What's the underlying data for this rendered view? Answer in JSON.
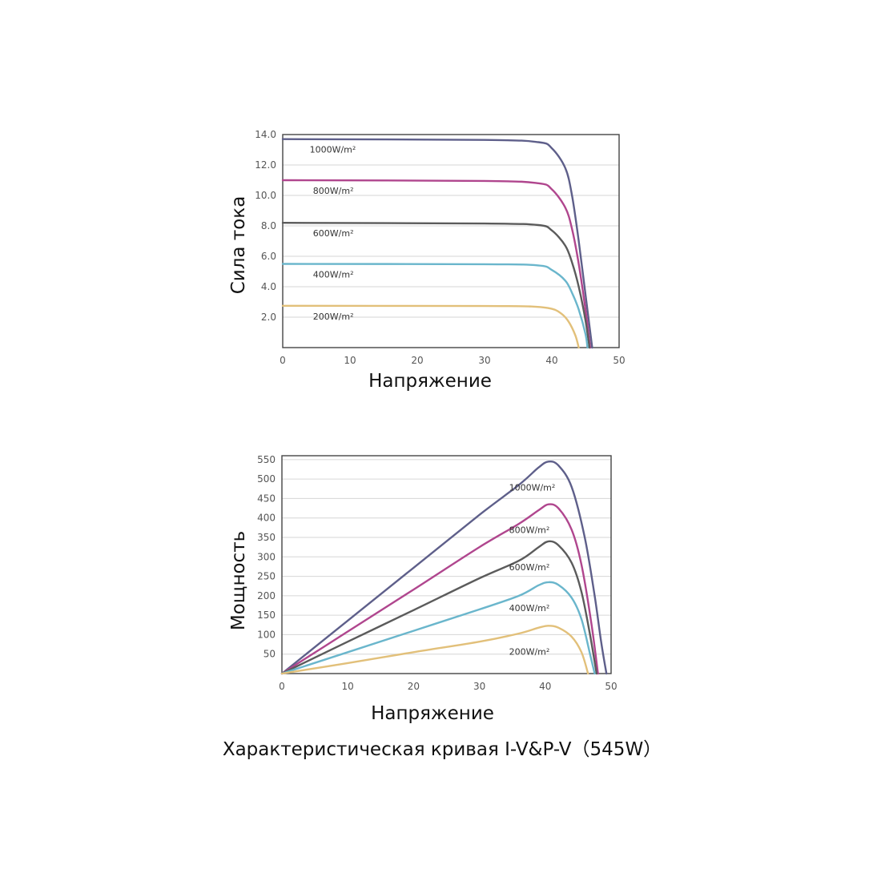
{
  "caption": "Характеристическая кривая I-V&P-V（545W）",
  "chart_data": [
    {
      "type": "line",
      "xlabel": "Напряжение",
      "ylabel": "Сила тока",
      "xlim": [
        0,
        50
      ],
      "ylim": [
        0,
        14
      ],
      "x_ticks": [
        "0",
        "10",
        "20",
        "30",
        "40",
        "50"
      ],
      "x_tick_values": [
        0,
        10,
        20,
        30,
        40,
        50
      ],
      "y_ticks": [
        "2.0",
        "4.0",
        "6.0",
        "8.0",
        "10.0",
        "12.0",
        "14.0"
      ],
      "y_tick_values": [
        2,
        4,
        6,
        8,
        10,
        12,
        14
      ],
      "grid": true,
      "series": [
        {
          "name": "1000W/m²",
          "color": "#5e5f8a",
          "x": [
            0,
            30,
            38,
            40,
            42,
            43,
            44,
            45,
            46
          ],
          "y": [
            13.7,
            13.65,
            13.5,
            13.1,
            11.8,
            10.0,
            7.0,
            3.5,
            0
          ]
        },
        {
          "name": "800W/m²",
          "color": "#b0468e",
          "x": [
            0,
            30,
            38,
            40,
            42,
            43,
            44,
            45,
            45.7
          ],
          "y": [
            11.0,
            10.95,
            10.8,
            10.4,
            9.2,
            7.8,
            5.5,
            2.5,
            0
          ]
        },
        {
          "name": "600W/m²",
          "color": "#5b5b5b",
          "x": [
            0,
            30,
            38,
            40,
            42,
            43,
            44,
            45,
            45.6
          ],
          "y": [
            8.2,
            8.15,
            8.05,
            7.7,
            6.7,
            5.6,
            4.0,
            1.8,
            0
          ]
        },
        {
          "name": "400W/m²",
          "color": "#6ab6cc",
          "x": [
            0,
            30,
            38,
            40,
            42,
            43,
            44,
            45,
            45.3
          ],
          "y": [
            5.5,
            5.48,
            5.4,
            5.1,
            4.4,
            3.6,
            2.5,
            0.9,
            0
          ]
        },
        {
          "name": "200W/m²",
          "color": "#e2c07a",
          "x": [
            0,
            30,
            37,
            40,
            41.5,
            42.5,
            43.5,
            44
          ],
          "y": [
            2.75,
            2.73,
            2.7,
            2.55,
            2.2,
            1.7,
            0.8,
            0
          ]
        }
      ]
    },
    {
      "type": "line",
      "xlabel": "Напряжение",
      "ylabel": "Мощность",
      "xlim": [
        0,
        50
      ],
      "ylim": [
        0,
        560
      ],
      "x_ticks": [
        "0",
        "10",
        "20",
        "30",
        "40",
        "50"
      ],
      "x_tick_values": [
        0,
        10,
        20,
        30,
        40,
        50
      ],
      "y_ticks": [
        "50",
        "100",
        "150",
        "200",
        "250",
        "300",
        "350",
        "400",
        "450",
        "500",
        "550"
      ],
      "y_tick_values": [
        50,
        100,
        150,
        200,
        250,
        300,
        350,
        400,
        450,
        500,
        550
      ],
      "grid": true,
      "series": [
        {
          "name": "1000W/m²",
          "color": "#5e5f8a",
          "x": [
            0,
            10,
            20,
            30,
            36,
            39,
            40.5,
            42,
            44,
            46,
            47.5,
            48.5,
            49.3
          ],
          "y": [
            0,
            136,
            272,
            408,
            485,
            530,
            545,
            535,
            480,
            350,
            200,
            80,
            0
          ]
        },
        {
          "name": "800W/m²",
          "color": "#b0468e",
          "x": [
            0,
            10,
            20,
            30,
            36,
            39,
            40.5,
            42,
            44,
            45.5,
            47,
            48
          ],
          "y": [
            0,
            108,
            216,
            325,
            385,
            420,
            435,
            425,
            370,
            280,
            130,
            0
          ]
        },
        {
          "name": "600W/m²",
          "color": "#5b5b5b",
          "x": [
            0,
            10,
            20,
            30,
            36,
            39,
            40.5,
            42,
            44,
            45.5,
            46.8,
            47.8
          ],
          "y": [
            0,
            82,
            163,
            245,
            290,
            325,
            340,
            330,
            285,
            210,
            100,
            0
          ]
        },
        {
          "name": "400W/m²",
          "color": "#6ab6cc",
          "x": [
            0,
            10,
            20,
            30,
            36,
            39,
            40.5,
            42,
            44,
            45.5,
            46.8,
            47.5
          ],
          "y": [
            0,
            55,
            110,
            165,
            200,
            227,
            235,
            228,
            195,
            140,
            50,
            0
          ]
        },
        {
          "name": "200W/m²",
          "color": "#e2c07a",
          "x": [
            0,
            10,
            20,
            30,
            36,
            39,
            40.5,
            42,
            44,
            45.5,
            46.5
          ],
          "y": [
            0,
            27,
            55,
            82,
            103,
            118,
            123,
            118,
            95,
            55,
            0
          ]
        }
      ]
    }
  ]
}
